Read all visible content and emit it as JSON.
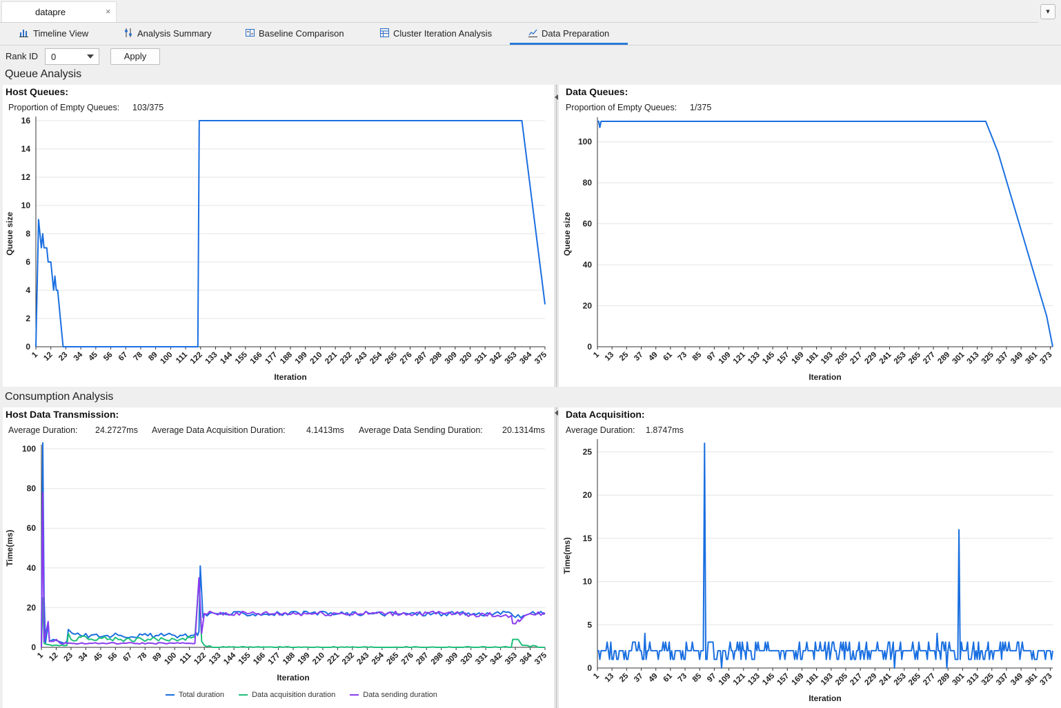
{
  "file_tab": {
    "name": "datapre",
    "close": "×"
  },
  "dropdown_icon": "▾",
  "tabs": [
    {
      "label": "Timeline View",
      "icon": "bar-chart-icon",
      "active": false
    },
    {
      "label": "Analysis Summary",
      "icon": "sliders-icon",
      "active": false
    },
    {
      "label": "Baseline Comparison",
      "icon": "compare-icon",
      "active": false
    },
    {
      "label": "Cluster Iteration Analysis",
      "icon": "table-icon",
      "active": false
    },
    {
      "label": "Data Preparation",
      "icon": "line-chart-icon",
      "active": true
    }
  ],
  "toolbar": {
    "rank_label": "Rank ID",
    "rank_value": "0",
    "apply_label": "Apply"
  },
  "sections": {
    "queue": "Queue Analysis",
    "consumption": "Consumption Analysis"
  },
  "host_queues": {
    "title": "Host Queues:",
    "stat_label": "Proportion of Empty Queues:",
    "stat_value": "103/375"
  },
  "data_queues": {
    "title": "Data Queues:",
    "stat_label": "Proportion of Empty Queues:",
    "stat_value": "1/375"
  },
  "host_transmission": {
    "title": "Host Data Transmission:",
    "avg_label": "Average Duration:",
    "avg_value": "24.2727ms",
    "acq_label": "Average Data Acquisition Duration:",
    "acq_value": "4.1413ms",
    "send_label": "Average Data Sending Duration:",
    "send_value": "20.1314ms"
  },
  "data_acquisition": {
    "title": "Data Acquisition:",
    "avg_label": "Average Duration:",
    "avg_value": "1.8747ms"
  },
  "legend": {
    "total": "Total duration",
    "acq": "Data acquisition duration",
    "send": "Data sending duration"
  },
  "colors": {
    "blue": "#1a6fe0",
    "green": "#1fbf7a",
    "purple": "#8a3cf0",
    "accent": "#2a7ad8"
  },
  "chart_data": [
    {
      "id": "host_queues",
      "type": "line",
      "xlabel": "Iteration",
      "ylabel": "Queue size",
      "xlim": [
        1,
        375
      ],
      "ylim": [
        0,
        16
      ],
      "yticks": [
        0,
        2,
        4,
        6,
        8,
        10,
        12,
        14,
        16
      ],
      "xticks": [
        1,
        12,
        23,
        34,
        45,
        56,
        67,
        78,
        89,
        100,
        111,
        122,
        133,
        144,
        155,
        166,
        177,
        188,
        199,
        210,
        221,
        232,
        243,
        254,
        265,
        276,
        287,
        298,
        309,
        320,
        331,
        342,
        353,
        364,
        375
      ],
      "grid": true,
      "series": [
        {
          "color": "blue",
          "points": [
            [
              1,
              0
            ],
            [
              3,
              9
            ],
            [
              4,
              8
            ],
            [
              5,
              7
            ],
            [
              6,
              8
            ],
            [
              7,
              7
            ],
            [
              9,
              7
            ],
            [
              10,
              6
            ],
            [
              12,
              6
            ],
            [
              13,
              5
            ],
            [
              14,
              4
            ],
            [
              15,
              5
            ],
            [
              16,
              4
            ],
            [
              17,
              4
            ],
            [
              19,
              2
            ],
            [
              21,
              0
            ],
            [
              120,
              0
            ],
            [
              121,
              16
            ],
            [
              358,
              16
            ],
            [
              375,
              3
            ]
          ]
        }
      ]
    },
    {
      "id": "data_queues",
      "type": "line",
      "xlabel": "Iteration",
      "ylabel": "Queue size",
      "xlim": [
        1,
        375
      ],
      "ylim": [
        0,
        110
      ],
      "yticks": [
        0,
        20,
        40,
        60,
        80,
        100
      ],
      "xticks": [
        1,
        13,
        25,
        37,
        49,
        61,
        73,
        85,
        97,
        109,
        121,
        133,
        145,
        157,
        169,
        181,
        193,
        205,
        217,
        229,
        241,
        253,
        265,
        277,
        289,
        301,
        313,
        325,
        337,
        349,
        361,
        373
      ],
      "grid": true,
      "series": [
        {
          "color": "blue",
          "points": [
            [
              1,
              110
            ],
            [
              2,
              110
            ],
            [
              3,
              107
            ],
            [
              4,
              110
            ],
            [
              320,
              110
            ],
            [
              330,
              95
            ],
            [
              340,
              75
            ],
            [
              350,
              55
            ],
            [
              360,
              35
            ],
            [
              370,
              15
            ],
            [
              375,
              0
            ]
          ]
        }
      ]
    },
    {
      "id": "host_transmission",
      "type": "line",
      "xlabel": "Iteration",
      "ylabel": "Time(ms)",
      "xlim": [
        1,
        375
      ],
      "ylim": [
        0,
        100
      ],
      "yticks": [
        0,
        20,
        40,
        60,
        80,
        100
      ],
      "xticks": [
        1,
        12,
        23,
        34,
        45,
        56,
        67,
        78,
        89,
        100,
        111,
        122,
        133,
        144,
        155,
        166,
        177,
        188,
        199,
        210,
        221,
        232,
        243,
        254,
        265,
        276,
        287,
        298,
        309,
        320,
        331,
        342,
        353,
        364,
        375
      ],
      "grid": true,
      "legend": "bottom",
      "series": [
        {
          "name": "Total duration",
          "color": "blue",
          "points": [
            [
              1,
              0
            ],
            [
              2,
              103
            ],
            [
              3,
              25
            ],
            [
              4,
              2
            ],
            [
              6,
              12
            ],
            [
              7,
              3
            ],
            [
              10,
              4
            ],
            [
              14,
              3
            ],
            [
              18,
              2
            ],
            [
              20,
              3
            ],
            [
              21,
              9
            ],
            [
              24,
              7
            ],
            [
              30,
              6
            ],
            [
              60,
              6
            ],
            [
              100,
              6
            ],
            [
              117,
              6
            ],
            [
              118,
              8
            ],
            [
              119,
              41
            ],
            [
              121,
              15
            ],
            [
              122,
              17
            ],
            [
              130,
              17
            ],
            [
              200,
              17
            ],
            [
              300,
              17
            ],
            [
              350,
              17
            ],
            [
              351,
              16
            ],
            [
              360,
              16
            ],
            [
              364,
              17
            ],
            [
              375,
              17
            ]
          ]
        },
        {
          "name": "Data acquisition duration",
          "color": "green",
          "points": [
            [
              1,
              0
            ],
            [
              2,
              25
            ],
            [
              3,
              2
            ],
            [
              10,
              1
            ],
            [
              20,
              1
            ],
            [
              21,
              7
            ],
            [
              23,
              4
            ],
            [
              30,
              5
            ],
            [
              60,
              4
            ],
            [
              100,
              4
            ],
            [
              115,
              5
            ],
            [
              118,
              34
            ],
            [
              120,
              3
            ],
            [
              122,
              1
            ],
            [
              130,
              0
            ],
            [
              200,
              0
            ],
            [
              300,
              0
            ],
            [
              350,
              0
            ],
            [
              351,
              4
            ],
            [
              355,
              4
            ],
            [
              358,
              1
            ],
            [
              375,
              0
            ]
          ]
        },
        {
          "name": "Data sending duration",
          "color": "purple",
          "points": [
            [
              1,
              0
            ],
            [
              2,
              78
            ],
            [
              3,
              3
            ],
            [
              6,
              13
            ],
            [
              7,
              3
            ],
            [
              10,
              3
            ],
            [
              12,
              4
            ],
            [
              15,
              2
            ],
            [
              20,
              2
            ],
            [
              25,
              2
            ],
            [
              60,
              2
            ],
            [
              100,
              2
            ],
            [
              115,
              2
            ],
            [
              118,
              35
            ],
            [
              120,
              7
            ],
            [
              122,
              17
            ],
            [
              130,
              17
            ],
            [
              200,
              17
            ],
            [
              300,
              17
            ],
            [
              350,
              16
            ],
            [
              351,
              12
            ],
            [
              356,
              13
            ],
            [
              360,
              16
            ],
            [
              364,
              17
            ],
            [
              375,
              17
            ]
          ]
        }
      ]
    },
    {
      "id": "data_acquisition",
      "type": "line",
      "xlabel": "Iteration",
      "ylabel": "Time(ms)",
      "xlim": [
        1,
        375
      ],
      "ylim": [
        0,
        26
      ],
      "yticks": [
        0,
        5,
        10,
        15,
        20,
        25
      ],
      "xticks": [
        1,
        13,
        25,
        37,
        49,
        61,
        73,
        85,
        97,
        109,
        121,
        133,
        145,
        157,
        169,
        181,
        193,
        205,
        217,
        229,
        241,
        253,
        265,
        277,
        289,
        301,
        313,
        325,
        337,
        349,
        361,
        373
      ],
      "grid": true,
      "series": [
        {
          "color": "blue",
          "baseline": "noise 1-3 ms",
          "spikes": [
            [
              89,
              26
            ],
            [
              298,
              16
            ],
            [
              40,
              4
            ],
            [
              280,
              4
            ],
            [
              103,
              0
            ],
            [
              245,
              0
            ],
            [
              288,
              0
            ]
          ],
          "points": [
            [
              1,
              2
            ],
            [
              10,
              2
            ],
            [
              11,
              1
            ],
            [
              12,
              3
            ],
            [
              13,
              1
            ],
            [
              20,
              2
            ],
            [
              25,
              1
            ],
            [
              30,
              3
            ],
            [
              40,
              4
            ],
            [
              41,
              1
            ],
            [
              50,
              2
            ],
            [
              60,
              3
            ],
            [
              70,
              1
            ],
            [
              80,
              2
            ],
            [
              88,
              2
            ],
            [
              89,
              26
            ],
            [
              90,
              1
            ],
            [
              95,
              3
            ],
            [
              103,
              0
            ],
            [
              104,
              2
            ],
            [
              120,
              3
            ],
            [
              140,
              2
            ],
            [
              160,
              2
            ],
            [
              180,
              3
            ],
            [
              200,
              2
            ],
            [
              220,
              1
            ],
            [
              240,
              3
            ],
            [
              245,
              0
            ],
            [
              246,
              2
            ],
            [
              260,
              3
            ],
            [
              280,
              4
            ],
            [
              288,
              0
            ],
            [
              289,
              2
            ],
            [
              297,
              1
            ],
            [
              298,
              16
            ],
            [
              299,
              1
            ],
            [
              310,
              3
            ],
            [
              330,
              2
            ],
            [
              350,
              3
            ],
            [
              360,
              1
            ],
            [
              375,
              2
            ]
          ]
        }
      ]
    }
  ]
}
